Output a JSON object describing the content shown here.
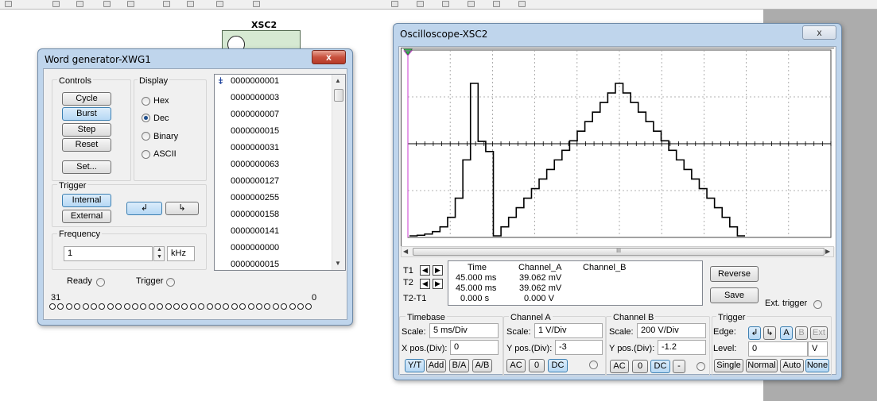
{
  "component": {
    "label": "XSC2"
  },
  "word_generator": {
    "title": "Word generator-XWG1",
    "close_glyph": "x",
    "controls": {
      "label": "Controls",
      "cycle": "Cycle",
      "burst": "Burst",
      "step": "Step",
      "reset": "Reset",
      "set": "Set..."
    },
    "display": {
      "label": "Display",
      "options": [
        "Hex",
        "Dec",
        "Binary",
        "ASCII"
      ],
      "selected": "Dec"
    },
    "trigger": {
      "label": "Trigger",
      "internal": "Internal",
      "external": "External",
      "rising_glyph": "↲",
      "falling_glyph": "↳"
    },
    "frequency": {
      "label": "Frequency",
      "value": "1",
      "unit": "kHz"
    },
    "words": [
      "0000000001",
      "0000000003",
      "0000000007",
      "0000000015",
      "0000000031",
      "0000000063",
      "0000000127",
      "0000000255",
      "0000000158",
      "0000000141",
      "0000000000",
      "0000000015"
    ],
    "status": {
      "ready": "Ready",
      "trigger": "Trigger"
    },
    "pins": {
      "high": "31",
      "low": "0"
    }
  },
  "oscilloscope": {
    "title": "Oscilloscope-XSC2",
    "close_glyph": "x",
    "readout": {
      "headers": [
        "Time",
        "Channel_A",
        "Channel_B"
      ],
      "rows": [
        {
          "label": "T1",
          "time": "45.000 ms",
          "a": "39.062 mV",
          "b": ""
        },
        {
          "label": "T2",
          "time": "45.000 ms",
          "a": "39.062 mV",
          "b": ""
        },
        {
          "label": "T2-T1",
          "time": "0.000 s",
          "a": "0.000 V",
          "b": ""
        }
      ]
    },
    "reverse": "Reverse",
    "save": "Save",
    "ext_trigger": "Ext. trigger",
    "timebase": {
      "label": "Timebase",
      "scale_label": "Scale:",
      "scale": "5 ms/Div",
      "xpos_label": "X pos.(Div):",
      "xpos": "0",
      "modes": [
        "Y/T",
        "Add",
        "B/A",
        "A/B"
      ],
      "active_mode": "Y/T"
    },
    "channel_a": {
      "label": "Channel A",
      "scale_label": "Scale:",
      "scale": "1  V/Div",
      "ypos_label": "Y pos.(Div):",
      "ypos": "-3",
      "coupling": [
        "AC",
        "0",
        "DC"
      ],
      "active": "DC"
    },
    "channel_b": {
      "label": "Channel B",
      "scale_label": "Scale:",
      "scale": "200  V/Div",
      "ypos_label": "Y pos.(Div):",
      "ypos": "-1.2",
      "coupling": [
        "AC",
        "0",
        "DC",
        "-"
      ],
      "active": "DC"
    },
    "trigger": {
      "label": "Trigger",
      "edge_label": "Edge:",
      "edge_buttons": [
        "↲",
        "↳",
        "A",
        "B",
        "Ext"
      ],
      "level_label": "Level:",
      "level": "0",
      "level_unit": "V",
      "modes": [
        "Single",
        "Normal",
        "Auto",
        "None"
      ],
      "active_mode": "None"
    },
    "scroll_glyph": "III",
    "waveform_a_levels": [
      0,
      1,
      3,
      7,
      15,
      31,
      63,
      127,
      255,
      158,
      141,
      0,
      15,
      31,
      47,
      63,
      79,
      95,
      111,
      127,
      143,
      159,
      175,
      191,
      207,
      223,
      239,
      255,
      239,
      223,
      207,
      191,
      175,
      159,
      143,
      127,
      111,
      95,
      79,
      63,
      47,
      31,
      15,
      0
    ]
  }
}
